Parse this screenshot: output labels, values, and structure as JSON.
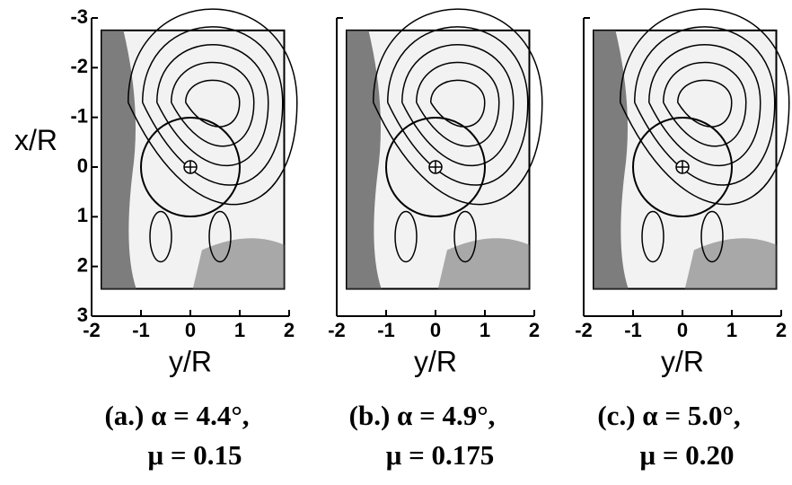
{
  "chart_data": [
    {
      "type": "contour",
      "xlabel": "y/R",
      "ylabel": "x/R",
      "caption": [
        "(a.) α = 4.4°,",
        "μ = 0.15"
      ],
      "xlim": [
        -2,
        2
      ],
      "ylim": [
        -3,
        3
      ],
      "xticks": [
        -2,
        -1,
        0,
        1,
        2
      ],
      "yticks": [
        -3,
        -2,
        -1,
        0,
        1,
        2,
        3
      ]
    },
    {
      "type": "contour",
      "xlabel": "y/R",
      "caption": [
        "(b.) α = 4.9°,",
        "μ = 0.175"
      ],
      "xlim": [
        -2,
        2
      ],
      "ylim": [
        -3,
        3
      ],
      "xticks": [
        -2,
        -1,
        0,
        1,
        2
      ]
    },
    {
      "type": "contour",
      "xlabel": "y/R",
      "caption": [
        "(c.) α = 5.0°,",
        "μ = 0.20"
      ],
      "xlim": [
        -2,
        2
      ],
      "ylim": [
        -3,
        3
      ],
      "xticks": [
        -2,
        -1,
        0,
        1,
        2
      ]
    }
  ]
}
